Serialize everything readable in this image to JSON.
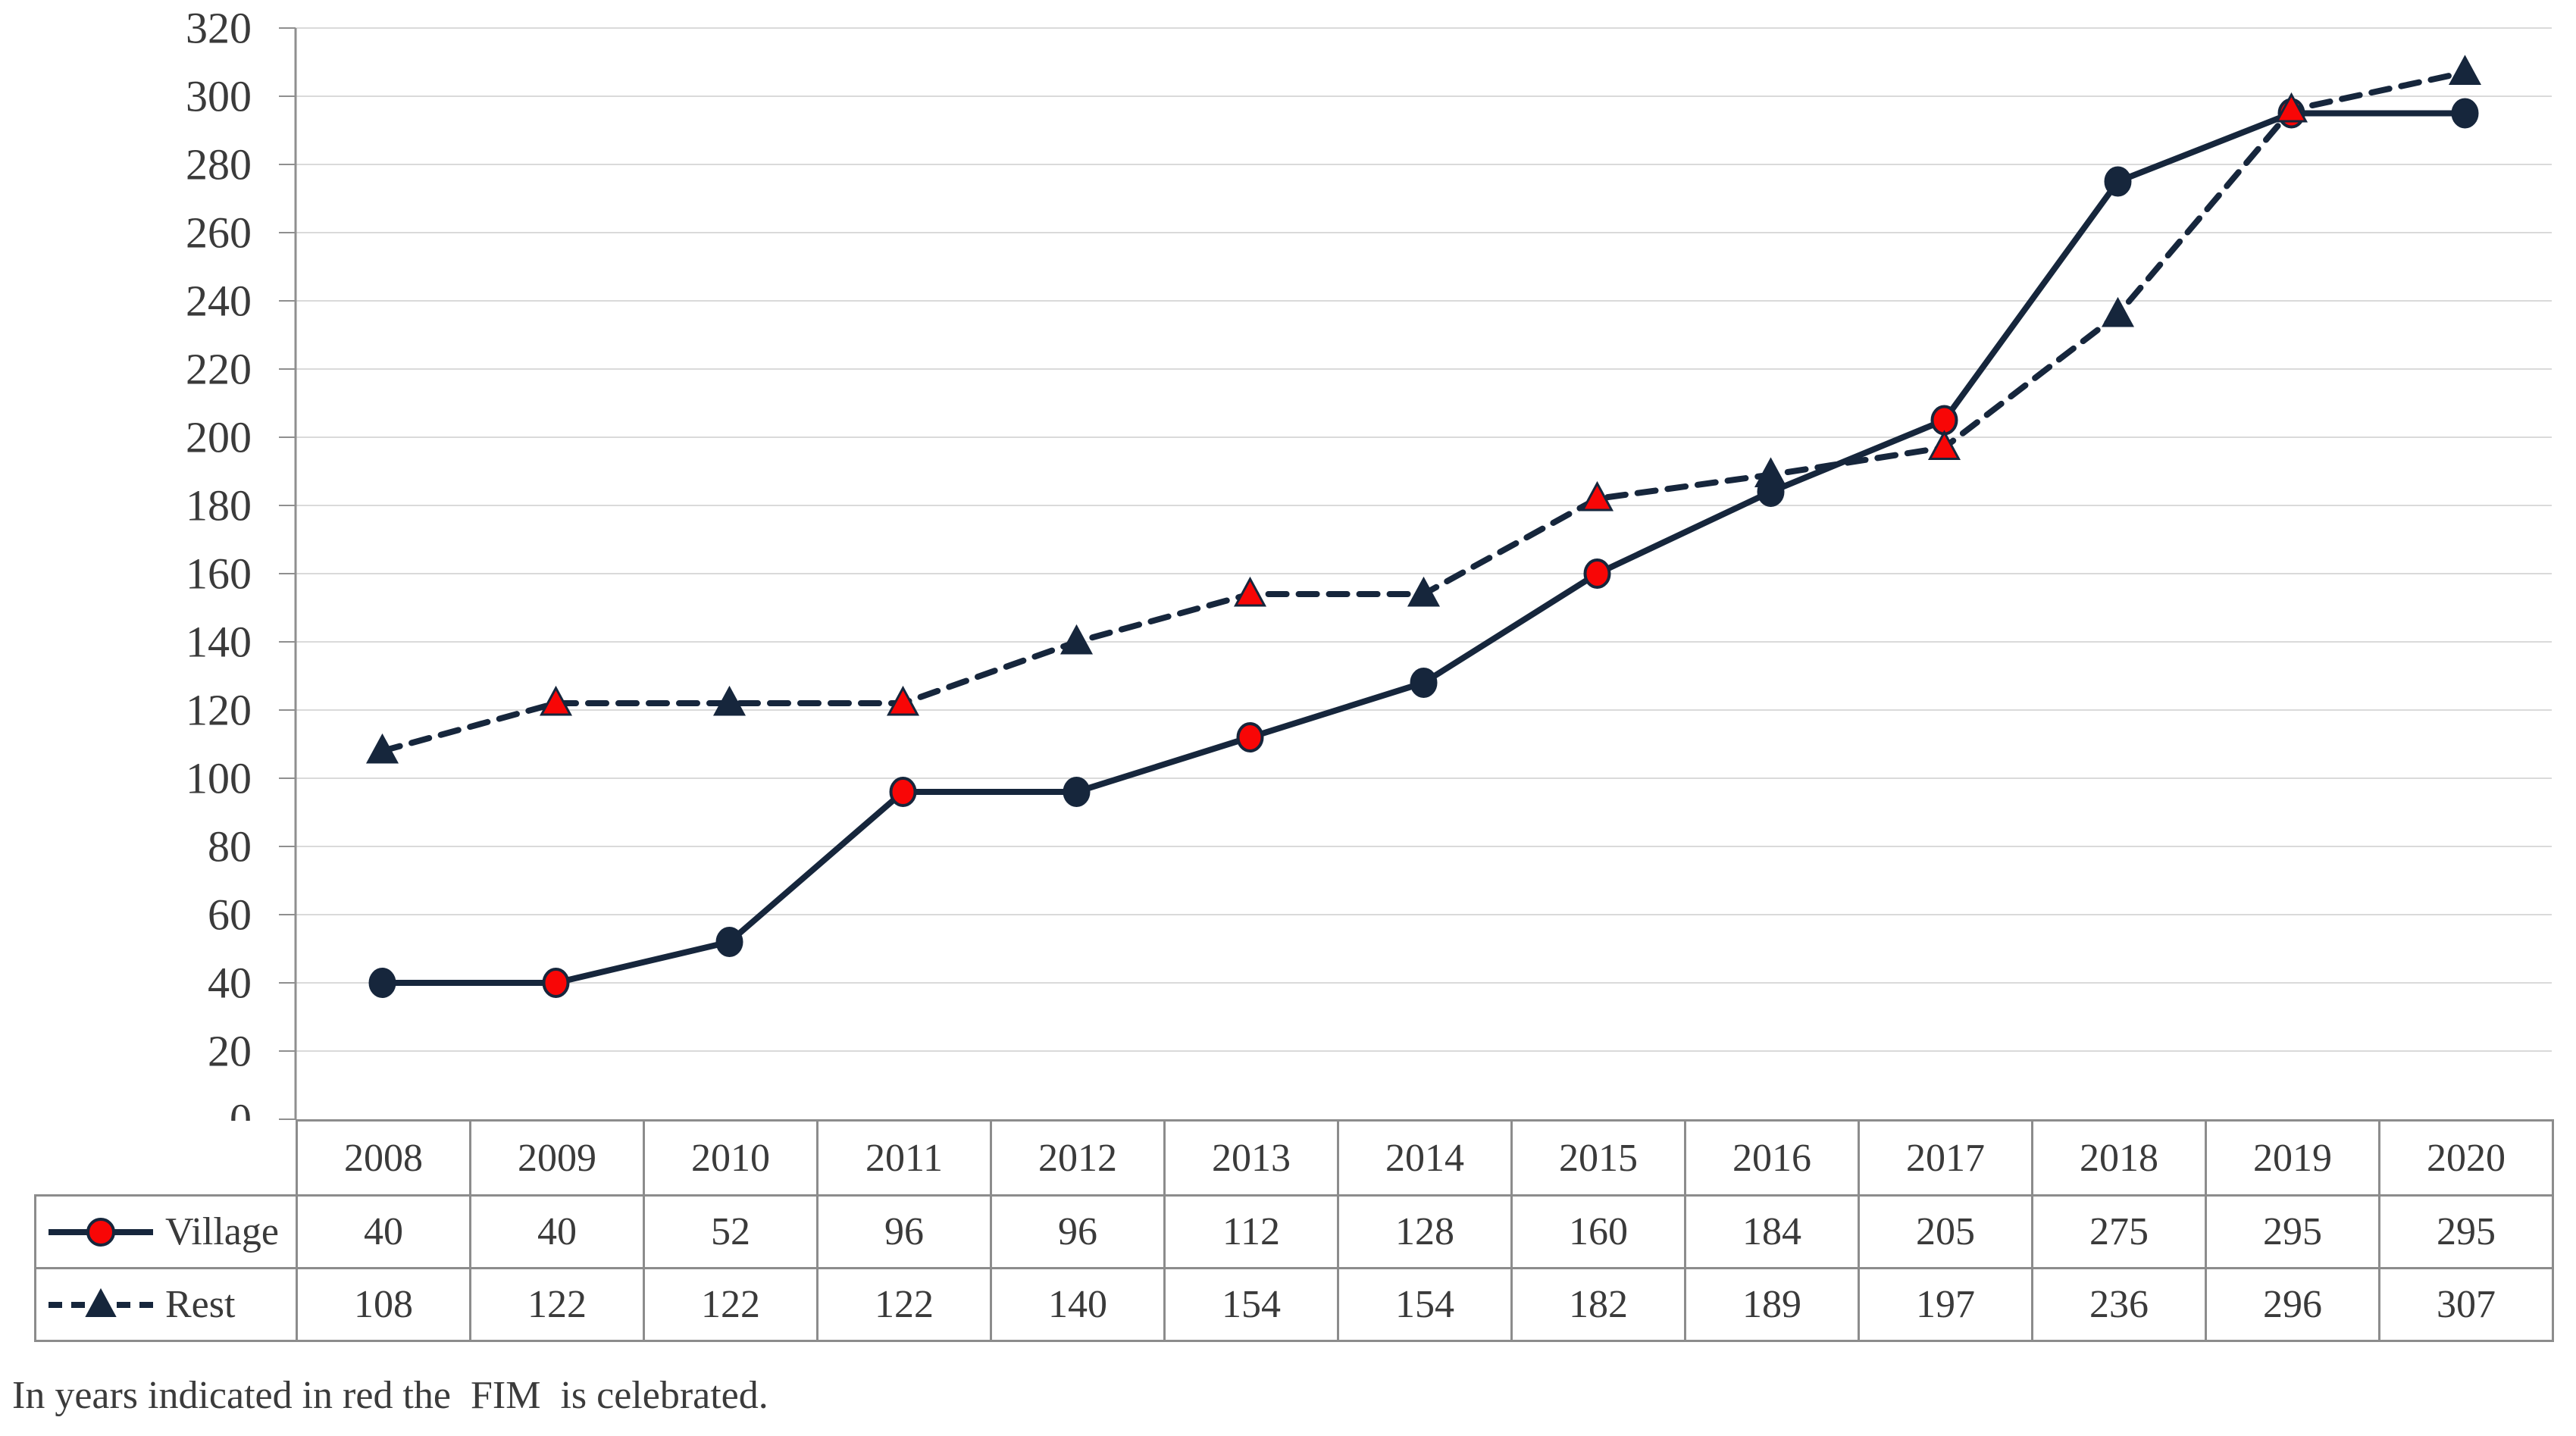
{
  "caption": "In years indicated in red the  FIM  is celebrated.",
  "chart_data": {
    "type": "line",
    "title": "",
    "xlabel": "",
    "ylabel": "",
    "categories": [
      "2008",
      "2009",
      "2010",
      "2011",
      "2012",
      "2013",
      "2014",
      "2015",
      "2016",
      "2017",
      "2018",
      "2019",
      "2020"
    ],
    "series": [
      {
        "name": "Village",
        "marker": "circle",
        "line_style": "solid",
        "values": [
          40,
          40,
          52,
          96,
          96,
          112,
          128,
          160,
          184,
          205,
          275,
          295,
          295
        ]
      },
      {
        "name": "Rest",
        "marker": "triangle",
        "line_style": "dashed",
        "values": [
          108,
          122,
          122,
          122,
          140,
          154,
          154,
          182,
          189,
          197,
          236,
          296,
          307
        ]
      }
    ],
    "fim_years": [
      "2009",
      "2011",
      "2013",
      "2015",
      "2017",
      "2019"
    ],
    "ylim": [
      0,
      320
    ],
    "ytick_step": 20,
    "yticks": [
      0,
      20,
      40,
      60,
      80,
      100,
      120,
      140,
      160,
      180,
      200,
      220,
      240,
      260,
      280,
      300,
      320
    ],
    "grid": true,
    "legend_position": "table-left",
    "colors": {
      "navy": "#16263c",
      "fim_red": "#f80606",
      "gridline": "#dadada",
      "axis": "#8f8f8f",
      "table_border": "#8c8c8c",
      "text": "#3a3a3a"
    }
  }
}
